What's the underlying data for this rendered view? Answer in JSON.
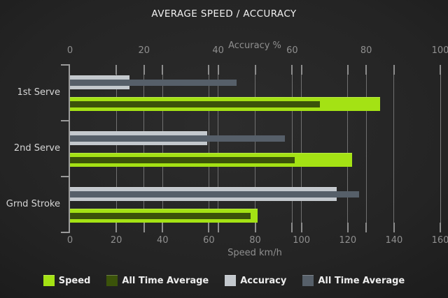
{
  "title": "AVERAGE SPEED / ACCURACY",
  "chart_data": {
    "type": "bar",
    "orientation": "horizontal",
    "grid": true,
    "legend_position": "bottom",
    "categories": [
      "1st Serve",
      "2nd Serve",
      "Grnd Stroke"
    ],
    "series": [
      {
        "name": "Speed",
        "axis": "speed",
        "color": "#a4e214",
        "values": [
          134,
          122,
          81
        ]
      },
      {
        "name": "All Time Average",
        "axis": "speed",
        "color": "#3b530a",
        "values": [
          108,
          97,
          78
        ]
      },
      {
        "name": "Accuracy",
        "axis": "accuracy",
        "color": "#c3c8cd",
        "values": [
          16,
          37,
          72
        ]
      },
      {
        "name": "All Time Average",
        "axis": "accuracy",
        "color": "#565f69",
        "values": [
          45,
          58,
          78
        ]
      }
    ],
    "axes": {
      "top": {
        "label": "Accuracy %",
        "min": 0,
        "max": 100,
        "ticks": [
          0,
          20,
          40,
          60,
          80,
          100
        ]
      },
      "bottom": {
        "label": "Speed km/h",
        "min": 0,
        "max": 160,
        "ticks": [
          0,
          20,
          40,
          60,
          80,
          100,
          120,
          140,
          160
        ]
      }
    }
  },
  "colors": {
    "background": "#242424",
    "gridline": "#7e7e7e",
    "axis_text": "#8f8f8f",
    "category_text": "#d6d6d6",
    "title_text": "#f1f1f1"
  }
}
